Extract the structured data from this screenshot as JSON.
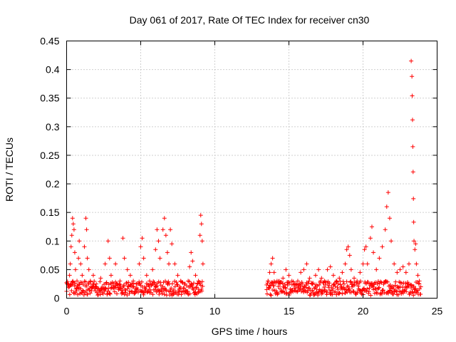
{
  "chart_data": {
    "type": "scatter",
    "title": "Day 061 of 2017, Rate Of TEC Index for receiver cn30",
    "xlabel": "GPS time / hours",
    "ylabel": "ROTI / TECUs",
    "xlim": [
      0,
      25
    ],
    "ylim": [
      0,
      0.45
    ],
    "xticks": [
      0,
      5,
      10,
      15,
      20,
      25
    ],
    "xtick_labels": [
      "0",
      "5",
      "10",
      "15",
      "20",
      "25"
    ],
    "yticks": [
      0,
      0.05,
      0.1,
      0.15,
      0.2,
      0.25,
      0.3,
      0.35,
      0.4,
      0.45
    ],
    "ytick_labels": [
      "0",
      "0.05",
      "0.1",
      "0.15",
      "0.2",
      "0.25",
      "0.3",
      "0.35",
      "0.4",
      "0.45"
    ],
    "grid": true,
    "marker": "+",
    "series": [
      {
        "name": "ROTI",
        "color": "#ff0000",
        "points": [
          [
            0.0,
            0.012
          ],
          [
            0.1,
            0.025
          ],
          [
            0.2,
            0.04
          ],
          [
            0.25,
            0.06
          ],
          [
            0.3,
            0.09
          ],
          [
            0.35,
            0.11
          ],
          [
            0.4,
            0.14
          ],
          [
            0.45,
            0.13
          ],
          [
            0.5,
            0.12
          ],
          [
            0.55,
            0.08
          ],
          [
            0.6,
            0.05
          ],
          [
            0.7,
            0.03
          ],
          [
            0.8,
            0.07
          ],
          [
            0.85,
            0.1
          ],
          [
            0.95,
            0.06
          ],
          [
            1.05,
            0.04
          ],
          [
            1.2,
            0.09
          ],
          [
            1.3,
            0.14
          ],
          [
            1.35,
            0.12
          ],
          [
            1.4,
            0.07
          ],
          [
            1.5,
            0.05
          ],
          [
            1.6,
            0.03
          ],
          [
            1.8,
            0.04
          ],
          [
            2.0,
            0.025
          ],
          [
            2.3,
            0.035
          ],
          [
            2.6,
            0.06
          ],
          [
            2.8,
            0.1
          ],
          [
            2.9,
            0.07
          ],
          [
            3.0,
            0.04
          ],
          [
            3.3,
            0.06
          ],
          [
            3.6,
            0.03
          ],
          [
            3.8,
            0.105
          ],
          [
            3.9,
            0.07
          ],
          [
            4.1,
            0.05
          ],
          [
            4.3,
            0.04
          ],
          [
            4.5,
            0.03
          ],
          [
            4.7,
            0.025
          ],
          [
            4.9,
            0.06
          ],
          [
            5.0,
            0.09
          ],
          [
            5.1,
            0.105
          ],
          [
            5.2,
            0.07
          ],
          [
            5.4,
            0.04
          ],
          [
            5.6,
            0.03
          ],
          [
            5.8,
            0.05
          ],
          [
            6.0,
            0.085
          ],
          [
            6.1,
            0.12
          ],
          [
            6.2,
            0.1
          ],
          [
            6.3,
            0.07
          ],
          [
            6.5,
            0.12
          ],
          [
            6.6,
            0.14
          ],
          [
            6.7,
            0.11
          ],
          [
            6.8,
            0.08
          ],
          [
            6.9,
            0.06
          ],
          [
            7.0,
            0.12
          ],
          [
            7.1,
            0.095
          ],
          [
            7.3,
            0.06
          ],
          [
            7.5,
            0.04
          ],
          [
            7.7,
            0.03
          ],
          [
            8.0,
            0.025
          ],
          [
            8.2,
            0.03
          ],
          [
            8.3,
            0.055
          ],
          [
            8.4,
            0.08
          ],
          [
            8.5,
            0.065
          ],
          [
            8.7,
            0.04
          ],
          [
            8.9,
            0.03
          ],
          [
            9.0,
            0.11
          ],
          [
            9.05,
            0.145
          ],
          [
            9.1,
            0.13
          ],
          [
            9.15,
            0.1
          ],
          [
            9.2,
            0.06
          ],
          [
            13.5,
            0.015
          ],
          [
            13.6,
            0.03
          ],
          [
            13.7,
            0.045
          ],
          [
            13.8,
            0.06
          ],
          [
            13.9,
            0.07
          ],
          [
            14.0,
            0.045
          ],
          [
            14.2,
            0.03
          ],
          [
            14.4,
            0.025
          ],
          [
            14.6,
            0.035
          ],
          [
            14.8,
            0.05
          ],
          [
            15.0,
            0.04
          ],
          [
            15.2,
            0.03
          ],
          [
            15.4,
            0.025
          ],
          [
            15.6,
            0.03
          ],
          [
            15.8,
            0.045
          ],
          [
            16.0,
            0.05
          ],
          [
            16.2,
            0.06
          ],
          [
            16.4,
            0.035
          ],
          [
            16.6,
            0.025
          ],
          [
            16.8,
            0.04
          ],
          [
            17.0,
            0.05
          ],
          [
            17.2,
            0.035
          ],
          [
            17.4,
            0.03
          ],
          [
            17.6,
            0.05
          ],
          [
            17.8,
            0.055
          ],
          [
            18.0,
            0.04
          ],
          [
            18.2,
            0.03
          ],
          [
            18.4,
            0.035
          ],
          [
            18.6,
            0.045
          ],
          [
            18.8,
            0.06
          ],
          [
            18.9,
            0.085
          ],
          [
            19.0,
            0.09
          ],
          [
            19.1,
            0.075
          ],
          [
            19.2,
            0.05
          ],
          [
            19.4,
            0.035
          ],
          [
            19.6,
            0.03
          ],
          [
            19.8,
            0.045
          ],
          [
            20.0,
            0.06
          ],
          [
            20.1,
            0.085
          ],
          [
            20.2,
            0.09
          ],
          [
            20.3,
            0.06
          ],
          [
            20.5,
            0.105
          ],
          [
            20.6,
            0.125
          ],
          [
            20.7,
            0.08
          ],
          [
            20.9,
            0.05
          ],
          [
            21.1,
            0.07
          ],
          [
            21.3,
            0.09
          ],
          [
            21.5,
            0.12
          ],
          [
            21.6,
            0.16
          ],
          [
            21.7,
            0.185
          ],
          [
            21.8,
            0.14
          ],
          [
            21.9,
            0.1
          ],
          [
            22.1,
            0.06
          ],
          [
            22.3,
            0.045
          ],
          [
            22.5,
            0.05
          ],
          [
            22.7,
            0.055
          ],
          [
            22.9,
            0.045
          ],
          [
            23.1,
            0.06
          ],
          [
            23.25,
            0.415
          ],
          [
            23.3,
            0.388
          ],
          [
            23.32,
            0.354
          ],
          [
            23.34,
            0.312
          ],
          [
            23.36,
            0.265
          ],
          [
            23.38,
            0.221
          ],
          [
            23.4,
            0.174
          ],
          [
            23.42,
            0.133
          ],
          [
            23.44,
            0.1
          ],
          [
            23.5,
            0.085
          ],
          [
            23.55,
            0.095
          ],
          [
            23.6,
            0.06
          ],
          [
            23.7,
            0.04
          ],
          [
            23.8,
            0.03
          ],
          [
            23.9,
            0.02
          ]
        ]
      }
    ],
    "dense_band": {
      "segments": [
        {
          "x_start": 0.0,
          "x_end": 9.2,
          "y_min": 0.005,
          "y_max": 0.03
        },
        {
          "x_start": 13.5,
          "x_end": 23.9,
          "y_min": 0.005,
          "y_max": 0.03
        }
      ]
    }
  }
}
